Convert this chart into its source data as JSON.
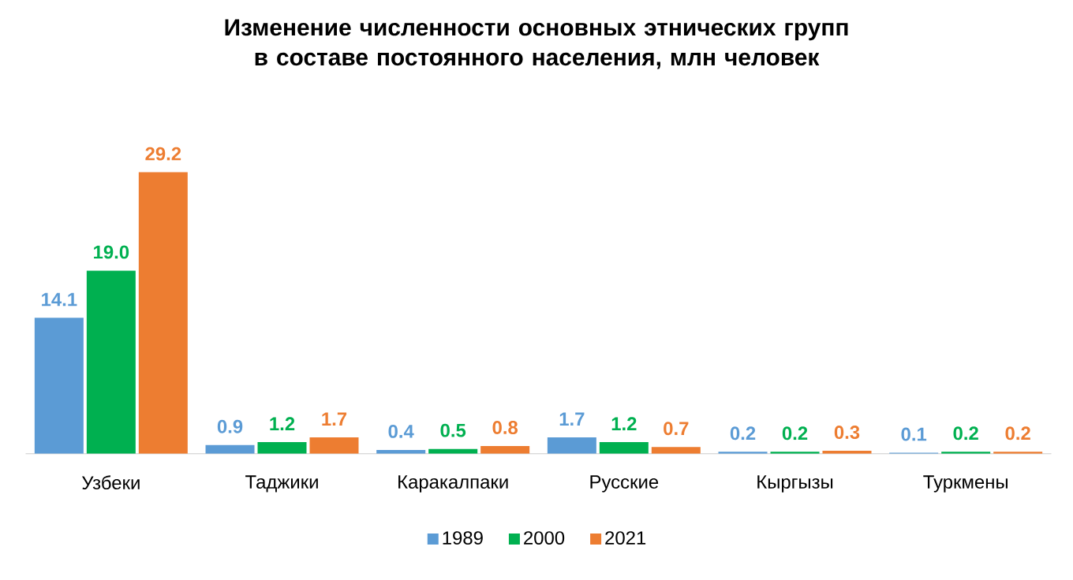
{
  "chart_data": {
    "type": "bar",
    "title": "Изменение численности основных этнических групп в составе постоянного населения, млн человек",
    "categories": [
      "Узбеки",
      "Таджики",
      "Каракалпаки",
      "Русские",
      "Кыргызы",
      "Туркмены"
    ],
    "series": [
      {
        "name": "1989",
        "color": "#5b9bd5",
        "values": [
          14.1,
          0.9,
          0.4,
          1.7,
          0.2,
          0.1
        ],
        "value_labels": [
          "14.1",
          "0.9",
          "0.4",
          "1.7",
          "0.2",
          "0.1"
        ]
      },
      {
        "name": "2000",
        "color": "#00b050",
        "values": [
          19.0,
          1.2,
          0.5,
          1.2,
          0.2,
          0.2
        ],
        "value_labels": [
          "19.0",
          "1.2",
          "0.5",
          "1.2",
          "0.2",
          "0.2"
        ]
      },
      {
        "name": "2021",
        "color": "#ed7d31",
        "values": [
          29.2,
          1.7,
          0.8,
          0.7,
          0.3,
          0.2
        ],
        "value_labels": [
          "29.2",
          "1.7",
          "0.8",
          "0.7",
          "0.3",
          "0.2"
        ]
      }
    ],
    "legend": "bottom"
  }
}
